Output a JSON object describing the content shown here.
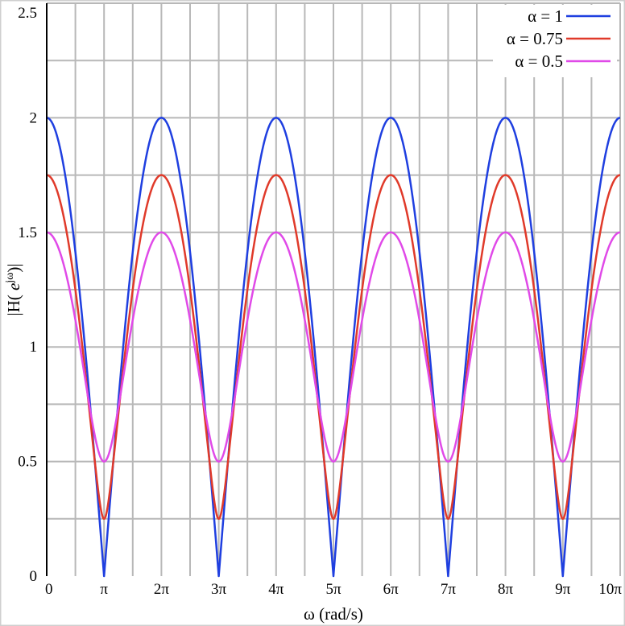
{
  "chart_data": {
    "type": "line",
    "title": "",
    "xlabel": "ω (rad/s)",
    "ylabel": "|H( e^jω )|",
    "ylabel_parts": {
      "bar": "|",
      "base": "H( ",
      "exp_base": "e",
      "exp": "jω",
      "close": ")"
    },
    "xlim": [
      0,
      31.4159
    ],
    "ylim": [
      0,
      2.5
    ],
    "grid": true,
    "legend_position": "top-right",
    "x_ticks": [
      {
        "value": 0,
        "label": "0"
      },
      {
        "value": 3.14159,
        "label": "π"
      },
      {
        "value": 6.28319,
        "label": "2π"
      },
      {
        "value": 9.42478,
        "label": "3π"
      },
      {
        "value": 12.56637,
        "label": "4π"
      },
      {
        "value": 15.70796,
        "label": "5π"
      },
      {
        "value": 18.84956,
        "label": "6π"
      },
      {
        "value": 21.99115,
        "label": "7π"
      },
      {
        "value": 25.13274,
        "label": "8π"
      },
      {
        "value": 28.27433,
        "label": "9π"
      },
      {
        "value": 31.41593,
        "label": "10π"
      }
    ],
    "y_ticks": [
      {
        "value": 0,
        "label": "0"
      },
      {
        "value": 0.5,
        "label": "0.5"
      },
      {
        "value": 1,
        "label": "1"
      },
      {
        "value": 1.5,
        "label": "1.5"
      },
      {
        "value": 2,
        "label": "2"
      },
      {
        "value": 2.5,
        "label": "2.5"
      }
    ],
    "series": [
      {
        "name": "α = 1",
        "alpha": 1,
        "color": "#1f3fe0",
        "peak": 2,
        "trough": 0
      },
      {
        "name": "α = 0.75",
        "alpha": 0.75,
        "color": "#e03a2a",
        "peak": 1.75,
        "trough": 0.25
      },
      {
        "name": "α = 0.5",
        "alpha": 0.5,
        "color": "#e04ae8",
        "peak": 1.5,
        "trough": 0.5
      }
    ]
  }
}
